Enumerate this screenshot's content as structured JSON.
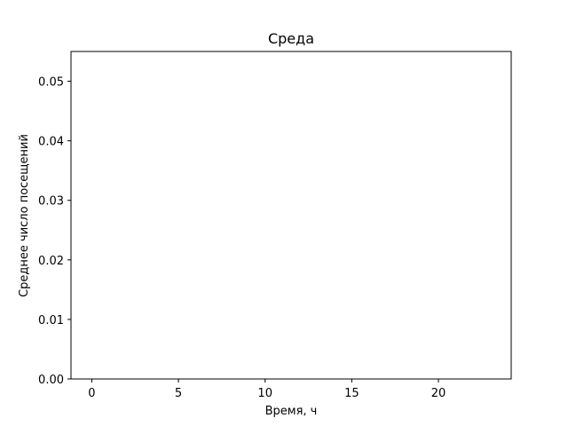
{
  "chart_data": {
    "type": "bar",
    "title": "Среда",
    "xlabel": "Время, ч",
    "ylabel": "Среднее число посещений",
    "xlim": [
      -1.2,
      24.2
    ],
    "ylim": [
      0,
      0.055
    ],
    "x_ticks": [
      0,
      5,
      10,
      15,
      20
    ],
    "x_tick_labels": [
      "0",
      "5",
      "10",
      "15",
      "20"
    ],
    "y_ticks": [
      0,
      0.01,
      0.02,
      0.03,
      0.04,
      0.05
    ],
    "y_tick_labels": [
      "0.00",
      "0.01",
      "0.02",
      "0.03",
      "0.04",
      "0.05"
    ],
    "grid": false,
    "x": [
      0,
      1,
      2,
      3,
      4,
      5,
      6,
      7,
      8,
      9,
      10,
      11,
      12,
      13,
      14,
      15,
      16,
      17,
      18,
      19,
      20,
      21,
      22,
      23
    ],
    "values": [
      0,
      0,
      0,
      0,
      0,
      0,
      0,
      0,
      0,
      0,
      0,
      0,
      0,
      0,
      0,
      0,
      0,
      0,
      0,
      0,
      0,
      0,
      0,
      0
    ],
    "colors": {
      "axes": "#000000",
      "background": "#ffffff",
      "bar": "#1f77b4"
    }
  }
}
